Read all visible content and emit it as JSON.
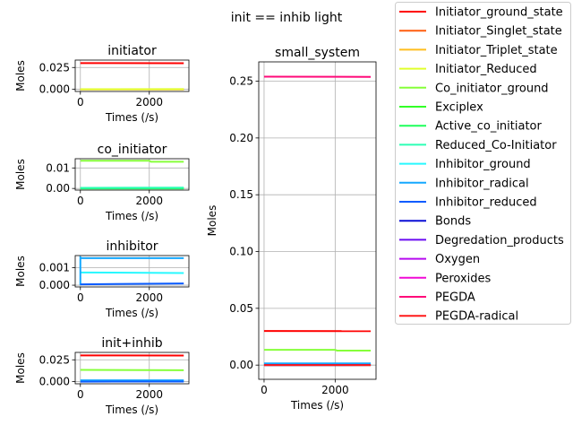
{
  "figure": {
    "suptitle": "init == inhib light"
  },
  "legend": {
    "placement": "right-outside",
    "entries": [
      {
        "label": "Initiator_ground_state",
        "color": "#ff0000"
      },
      {
        "label": "Initiator_Singlet_state",
        "color": "#ff5e0f"
      },
      {
        "label": "Initiator_Triplet_state",
        "color": "#ffbe1e"
      },
      {
        "label": "Initiator_Reduced",
        "color": "#e0ff2c"
      },
      {
        "label": "Co_initiator_ground",
        "color": "#86ff3a"
      },
      {
        "label": "Exciplex",
        "color": "#33ff27"
      },
      {
        "label": "Active_co_initiator",
        "color": "#1eff5a"
      },
      {
        "label": "Reduced_Co-Initiator",
        "color": "#2cffb5"
      },
      {
        "label": "Inhibitor_ground",
        "color": "#28f8ff"
      },
      {
        "label": "Inhibitor_radical",
        "color": "#15a8ff"
      },
      {
        "label": "Inhibitor_reduced",
        "color": "#0b5cff"
      },
      {
        "label": "Bonds",
        "color": "#0a0fd6"
      },
      {
        "label": "Degredation_products",
        "color": "#6a0cf2"
      },
      {
        "label": "Oxygen",
        "color": "#b60aef"
      },
      {
        "label": "Peroxides",
        "color": "#f00ad5"
      },
      {
        "label": "PEGDA",
        "color": "#ff0a79"
      },
      {
        "label": "PEGDA-radical",
        "color": "#ff1a1a"
      }
    ]
  },
  "chart_data": [
    {
      "type": "line",
      "title": "initiator",
      "xlabel": "Times (/s)",
      "ylabel": "Moles",
      "xlim": [
        -150,
        3150
      ],
      "ylim": [
        -0.0025,
        0.0335
      ],
      "xticks": [
        {
          "v": 0,
          "label": "0"
        },
        {
          "v": 2000,
          "label": "2000"
        }
      ],
      "yticks": [
        {
          "v": 0,
          "label": "0.000"
        },
        {
          "v": 0.025,
          "label": "0.025"
        }
      ],
      "grid": true,
      "series": [
        {
          "name": "Initiator_ground_state",
          "color": "#ff0000",
          "x": [
            0,
            3000
          ],
          "y": [
            0.03,
            0.0299
          ]
        },
        {
          "name": "Initiator_Singlet_state",
          "color": "#ff5e0f",
          "x": [
            0,
            3000
          ],
          "y": [
            0.0,
            0.0
          ]
        },
        {
          "name": "Initiator_Triplet_state",
          "color": "#ffbe1e",
          "x": [
            0,
            3000
          ],
          "y": [
            0.0,
            0.0
          ]
        },
        {
          "name": "Initiator_Reduced",
          "color": "#e0ff2c",
          "x": [
            0,
            3000
          ],
          "y": [
            0.0001,
            0.0002
          ]
        }
      ]
    },
    {
      "type": "line",
      "title": "co_initiator",
      "xlabel": "Times (/s)",
      "ylabel": "Moles",
      "xlim": [
        -150,
        3150
      ],
      "ylim": [
        -0.0008,
        0.0145
      ],
      "xticks": [
        {
          "v": 0,
          "label": "0"
        },
        {
          "v": 2000,
          "label": "2000"
        }
      ],
      "yticks": [
        {
          "v": 0,
          "label": "0.00"
        },
        {
          "v": 0.01,
          "label": "0.01"
        }
      ],
      "grid": true,
      "series": [
        {
          "name": "Co_initiator_ground",
          "color": "#86ff3a",
          "x": [
            0,
            2000,
            2050,
            3000
          ],
          "y": [
            0.0135,
            0.0135,
            0.013,
            0.013
          ]
        },
        {
          "name": "Exciplex",
          "color": "#33ff27",
          "x": [
            0,
            3000
          ],
          "y": [
            0.0,
            0.0
          ]
        },
        {
          "name": "Active_co_initiator",
          "color": "#1eff5a",
          "x": [
            0,
            3000
          ],
          "y": [
            0.0,
            0.0
          ]
        },
        {
          "name": "Reduced_Co-Initiator",
          "color": "#2cffb5",
          "x": [
            0,
            3000
          ],
          "y": [
            0.0003,
            0.0004
          ]
        }
      ]
    },
    {
      "type": "line",
      "title": "inhibitor",
      "xlabel": "Times (/s)",
      "ylabel": "Moles",
      "xlim": [
        -150,
        3150
      ],
      "ylim": [
        -0.0001,
        0.0017
      ],
      "xticks": [
        {
          "v": 0,
          "label": "0"
        },
        {
          "v": 2000,
          "label": "2000"
        }
      ],
      "yticks": [
        {
          "v": 0,
          "label": "0.000"
        },
        {
          "v": 0.001,
          "label": "0.001"
        }
      ],
      "grid": true,
      "series": [
        {
          "name": "Inhibitor_ground",
          "color": "#28f8ff",
          "x": [
            0,
            3000
          ],
          "y": [
            0.00073,
            0.0007
          ]
        },
        {
          "name": "Inhibitor_radical",
          "color": "#15a8ff",
          "x": [
            0,
            0,
            40,
            3000
          ],
          "y": [
            0.0,
            0.0016,
            0.00155,
            0.00155
          ]
        },
        {
          "name": "Inhibitor_reduced",
          "color": "#0b5cff",
          "x": [
            0,
            3000
          ],
          "y": [
            5e-05,
            0.0001
          ]
        }
      ]
    },
    {
      "type": "line",
      "title": "init+inhib",
      "xlabel": "Times (/s)",
      "ylabel": "Moles",
      "xlim": [
        -150,
        3150
      ],
      "ylim": [
        -0.0025,
        0.0335
      ],
      "xticks": [
        {
          "v": 0,
          "label": "0"
        },
        {
          "v": 2000,
          "label": "2000"
        }
      ],
      "yticks": [
        {
          "v": 0,
          "label": "0.000"
        },
        {
          "v": 0.025,
          "label": "0.025"
        }
      ],
      "grid": true,
      "series": [
        {
          "name": "Initiator_ground_state",
          "color": "#ff0000",
          "x": [
            0,
            3000
          ],
          "y": [
            0.03,
            0.0299
          ]
        },
        {
          "name": "Co_initiator_ground",
          "color": "#86ff3a",
          "x": [
            0,
            3000
          ],
          "y": [
            0.0135,
            0.013
          ]
        },
        {
          "name": "Inhibitor_ground",
          "color": "#28f8ff",
          "x": [
            0,
            3000
          ],
          "y": [
            0.0007,
            0.0007
          ]
        },
        {
          "name": "Inhibitor_radical",
          "color": "#15a8ff",
          "x": [
            0,
            3000
          ],
          "y": [
            0.0015,
            0.0015
          ]
        },
        {
          "name": "Inhibitor_reduced",
          "color": "#0b5cff",
          "x": [
            0,
            3000
          ],
          "y": [
            0.0,
            0.0001
          ]
        }
      ]
    },
    {
      "type": "line",
      "title": "small_system",
      "xlabel": "Times (/s)",
      "ylabel": "Moles",
      "xlim": [
        -150,
        3150
      ],
      "ylim": [
        -0.0125,
        0.267
      ],
      "xticks": [
        {
          "v": 0,
          "label": "0"
        },
        {
          "v": 2000,
          "label": "2000"
        }
      ],
      "yticks": [
        {
          "v": 0,
          "label": "0.00"
        },
        {
          "v": 0.05,
          "label": "0.05"
        },
        {
          "v": 0.1,
          "label": "0.10"
        },
        {
          "v": 0.15,
          "label": "0.15"
        },
        {
          "v": 0.2,
          "label": "0.20"
        },
        {
          "v": 0.25,
          "label": "0.25"
        }
      ],
      "grid": true,
      "series": [
        {
          "name": "Initiator_ground_state",
          "color": "#ff0000",
          "x": [
            0,
            3000
          ],
          "y": [
            0.03,
            0.0299
          ]
        },
        {
          "name": "Initiator_Singlet_state",
          "color": "#ff5e0f",
          "x": [
            0,
            3000
          ],
          "y": [
            0.0,
            0.0
          ]
        },
        {
          "name": "Initiator_Triplet_state",
          "color": "#ffbe1e",
          "x": [
            0,
            3000
          ],
          "y": [
            0.0,
            0.0
          ]
        },
        {
          "name": "Initiator_Reduced",
          "color": "#e0ff2c",
          "x": [
            0,
            3000
          ],
          "y": [
            0.0001,
            0.0002
          ]
        },
        {
          "name": "Co_initiator_ground",
          "color": "#86ff3a",
          "x": [
            0,
            2000,
            2050,
            3000
          ],
          "y": [
            0.0135,
            0.0135,
            0.0128,
            0.0128
          ]
        },
        {
          "name": "Inhibitor_ground",
          "color": "#28f8ff",
          "x": [
            0,
            3000
          ],
          "y": [
            0.0007,
            0.0007
          ]
        },
        {
          "name": "Inhibitor_radical",
          "color": "#15a8ff",
          "x": [
            0,
            3000
          ],
          "y": [
            0.0015,
            0.0015
          ]
        },
        {
          "name": "Inhibitor_reduced",
          "color": "#0b5cff",
          "x": [
            0,
            3000
          ],
          "y": [
            0.0,
            0.0001
          ]
        },
        {
          "name": "Bonds",
          "color": "#0a0fd6",
          "x": [
            0,
            3000
          ],
          "y": [
            0.0,
            0.0
          ]
        },
        {
          "name": "PEGDA",
          "color": "#ff0a79",
          "x": [
            0,
            3000
          ],
          "y": [
            0.254,
            0.2538
          ]
        },
        {
          "name": "PEGDA-radical",
          "color": "#ff1a1a",
          "x": [
            0,
            3000
          ],
          "y": [
            0.0,
            0.0
          ]
        }
      ]
    }
  ]
}
